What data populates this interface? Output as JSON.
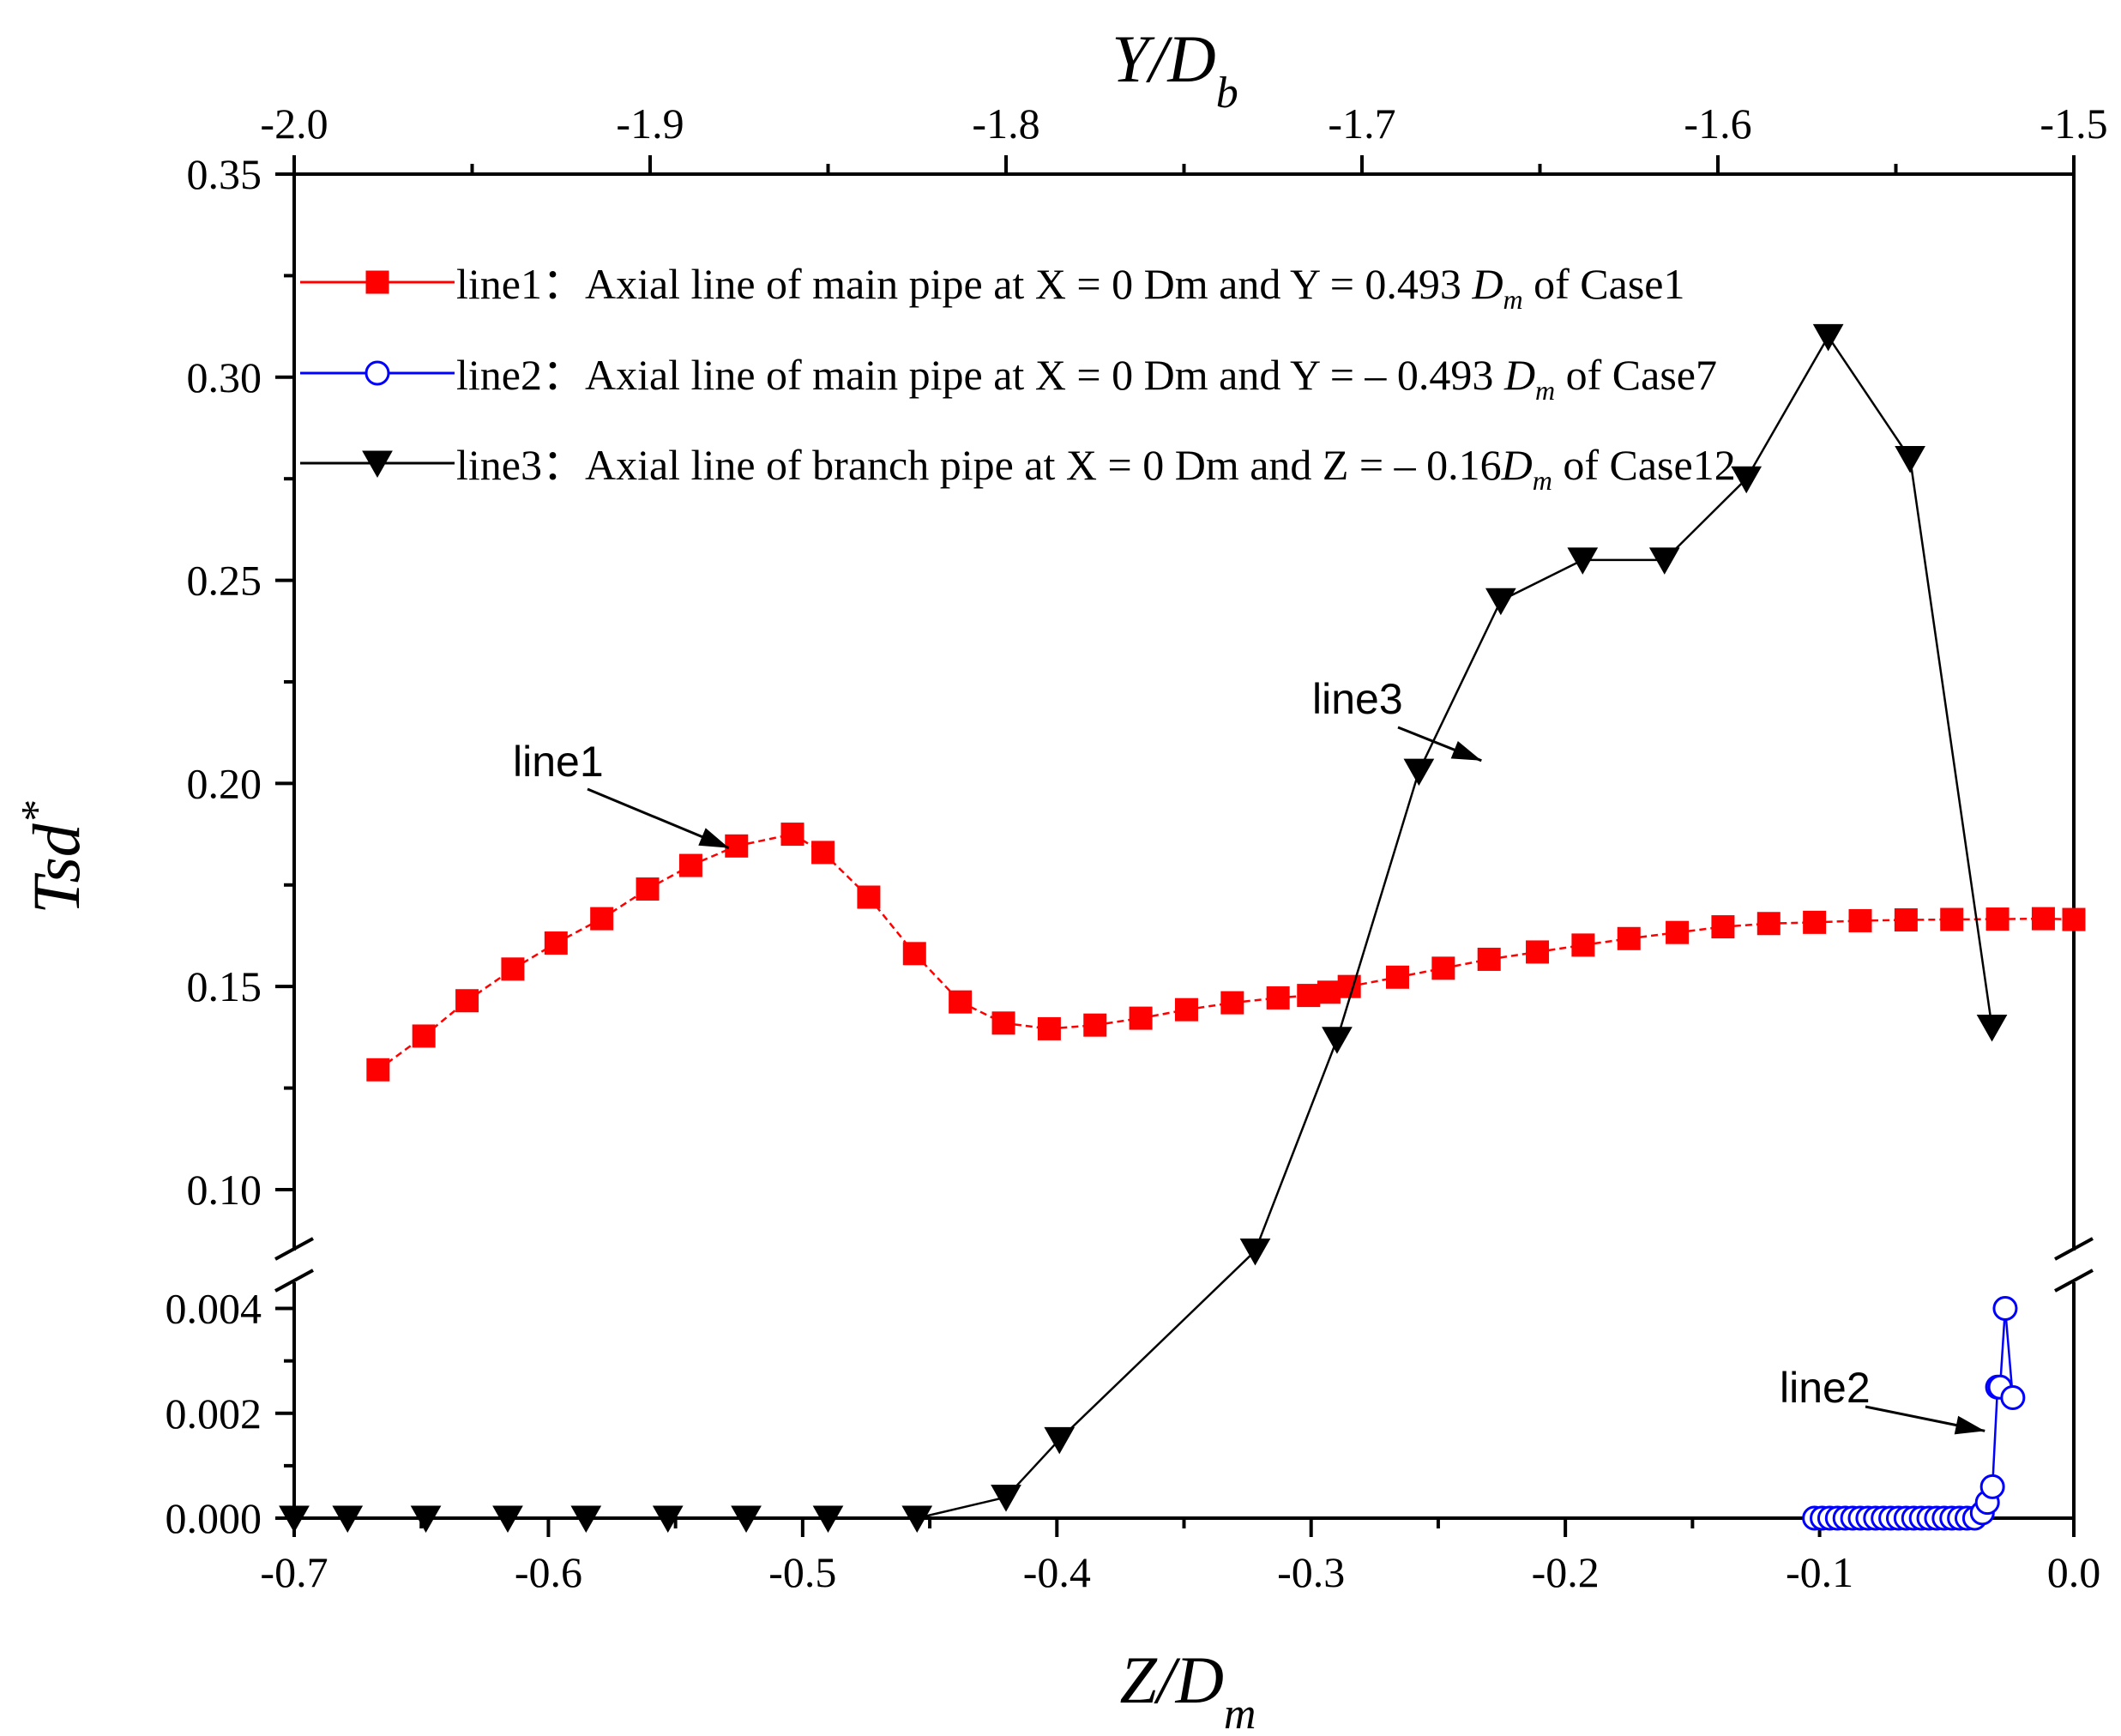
{
  "chart_data": {
    "type": "line",
    "title": "",
    "xlabel": {
      "main": "Z/D",
      "sub": "m"
    },
    "x2label": {
      "main": "Y/D",
      "sub": "b"
    },
    "ylabel": {
      "main": "Tsd",
      "sup": "*"
    },
    "xlim": [
      -0.7,
      0.0
    ],
    "x2lim": [
      -2.0,
      -1.5
    ],
    "ylim_upper": [
      0.085,
      0.35
    ],
    "ylim_lower": [
      0.0,
      0.0045
    ],
    "axis_break": "between 0.0045 and 0.085",
    "x_ticks": [
      "-0.7",
      "-0.6",
      "-0.5",
      "-0.4",
      "-0.3",
      "-0.2",
      "-0.1",
      "0.0"
    ],
    "x2_ticks": [
      "-2.0",
      "-1.9",
      "-1.8",
      "-1.7",
      "-1.6",
      "-1.5"
    ],
    "y_upper_ticks": [
      "0.10",
      "0.15",
      "0.20",
      "0.25",
      "0.30",
      "0.35"
    ],
    "y_lower_ticks": [
      "0.000",
      "0.002",
      "0.004"
    ],
    "legend": [
      {
        "id": "line1",
        "label": "line1：Axial line of main pipe at X = 0 Dm and Y = 0.493 ",
        "dm": "D",
        "dm_sub": "m",
        "suffix": " of Case1",
        "color": "#ff0000",
        "marker": "square"
      },
      {
        "id": "line2",
        "label": "line2：Axial line of main pipe at X = 0 Dm and Y = – 0.493 ",
        "dm": "D",
        "dm_sub": "m",
        "suffix": "  of Case7",
        "color": "#0000ff",
        "marker": "circle-open"
      },
      {
        "id": "line3",
        "label": "line3：Axial line of branch pipe at X = 0 Dm and Z = – 0.16",
        "dm": "D",
        "dm_sub": "m",
        "suffix": " of Case12",
        "color": "#000000",
        "marker": "triangle-down"
      }
    ],
    "annotations": [
      {
        "text": "line1",
        "target_x": -0.529,
        "target_y": 0.182
      },
      {
        "text": "line3",
        "target_x": -0.233,
        "target_y": 0.2035
      },
      {
        "text": "line2",
        "target_x": -0.035,
        "target_y": 0.0015
      }
    ],
    "series": [
      {
        "name": "line1",
        "axis": "bottom",
        "color": "#ff0000",
        "x": [
          -0.667,
          -0.649,
          -0.632,
          -0.614,
          -0.597,
          -0.579,
          -0.561,
          -0.544,
          -0.526,
          -0.504,
          -0.492,
          -0.474,
          -0.456,
          -0.438,
          -0.421,
          -0.403,
          -0.385,
          -0.367,
          -0.349,
          -0.331,
          -0.313,
          -0.301,
          -0.293,
          -0.285,
          -0.266,
          -0.248,
          -0.23,
          -0.211,
          -0.193,
          -0.175,
          -0.156,
          -0.138,
          -0.12,
          -0.102,
          -0.084,
          -0.066,
          -0.048,
          -0.03,
          -0.012,
          0.0
        ],
        "y": [
          0.1295,
          0.1378,
          0.1465,
          0.1543,
          0.1607,
          0.1667,
          0.174,
          0.1798,
          0.1846,
          0.1875,
          0.183,
          0.172,
          0.1581,
          0.1462,
          0.141,
          0.1396,
          0.1405,
          0.1422,
          0.1443,
          0.146,
          0.1472,
          0.1478,
          0.1486,
          0.15,
          0.1523,
          0.1545,
          0.1567,
          0.1585,
          0.1602,
          0.1618,
          0.1633,
          0.1647,
          0.1655,
          0.1658,
          0.1662,
          0.1664,
          0.1665,
          0.1666,
          0.1667,
          0.1665
        ]
      },
      {
        "name": "line2",
        "axis": "bottom",
        "color": "#0000ff",
        "x": [
          -0.102,
          -0.099,
          -0.096,
          -0.093,
          -0.09,
          -0.087,
          -0.084,
          -0.081,
          -0.078,
          -0.075,
          -0.072,
          -0.069,
          -0.066,
          -0.063,
          -0.06,
          -0.057,
          -0.054,
          -0.051,
          -0.048,
          -0.045,
          -0.042,
          -0.039,
          -0.036,
          -0.034,
          -0.032,
          -0.03,
          -0.029,
          -0.027,
          -0.024
        ],
        "y": [
          0.0,
          0.0,
          0.0,
          0.0,
          0.0,
          0.0,
          0.0,
          0.0,
          0.0,
          0.0,
          0.0,
          0.0,
          0.0,
          0.0,
          0.0,
          0.0,
          0.0,
          0.0,
          0.0,
          0.0,
          0.0,
          0.0,
          0.0001,
          0.0003,
          0.0006,
          0.0025,
          0.0025,
          0.004,
          0.0023
        ]
      },
      {
        "name": "line3",
        "axis": "top",
        "color": "#000000",
        "x": [
          -2.0,
          -1.985,
          -1.963,
          -1.94,
          -1.918,
          -1.895,
          -1.873,
          -1.85,
          -1.825,
          -1.8,
          -1.785,
          -1.73,
          -1.707,
          -1.684,
          -1.661,
          -1.638,
          -1.615,
          -1.592,
          -1.569,
          -1.546,
          -1.523,
          -1.5
        ],
        "y": [
          0.0,
          0.0,
          0.0,
          0.0,
          0.0,
          0.0,
          0.0,
          0.0,
          0.0,
          0.0004,
          0.0015,
          0.084,
          0.137,
          0.203,
          0.245,
          0.255,
          0.255,
          0.275,
          0.31,
          0.28,
          0.14,
          null
        ]
      }
    ]
  }
}
